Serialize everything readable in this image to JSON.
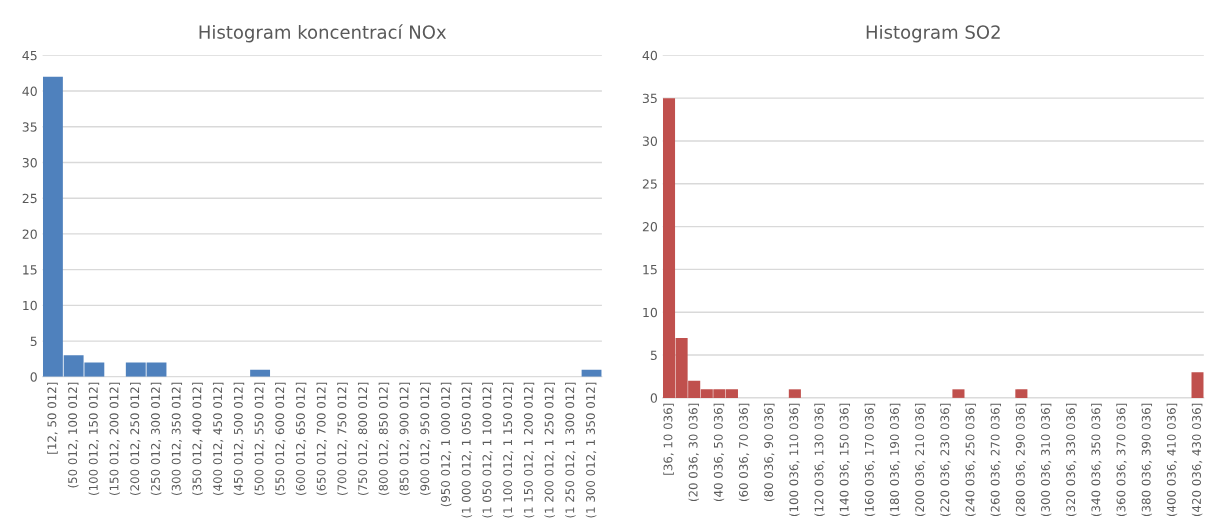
{
  "chart_data": [
    {
      "type": "bar",
      "title": "Histogram koncentrací NOx",
      "categories": [
        "[12, 50 012]",
        "(50 012, 100 012]",
        "(100 012, 150 012]",
        "(150 012, 200 012]",
        "(200 012, 250 012]",
        "(250 012, 300 012]",
        "(300 012, 350 012]",
        "(350 012, 400 012]",
        "(400 012, 450 012]",
        "(450 012, 500 012]",
        "(500 012, 550 012]",
        "(550 012, 600 012]",
        "(600 012, 650 012]",
        "(650 012, 700 012]",
        "(700 012, 750 012]",
        "(750 012, 800 012]",
        "(800 012, 850 012]",
        "(850 012, 900 012]",
        "(900 012, 950 012]",
        "(950 012, 1 000 012]",
        "(1 000 012, 1 050 012]",
        "(1 050 012, 1 100 012]",
        "(1 100 012, 1 150 012]",
        "(1 150 012, 1 200 012]",
        "(1 200 012, 1 250 012]",
        "(1 250 012, 1 300 012]",
        "(1 300 012, 1 350 012]"
      ],
      "values": [
        42,
        3,
        2,
        0,
        2,
        2,
        0,
        0,
        0,
        0,
        1,
        0,
        0,
        0,
        0,
        0,
        0,
        0,
        0,
        0,
        0,
        0,
        0,
        0,
        0,
        0,
        1
      ],
      "color": "#4f81bd",
      "ylim": [
        0,
        45
      ],
      "yticks": [
        0,
        5,
        10,
        15,
        20,
        25,
        30,
        35,
        40,
        45
      ],
      "grid": "y"
    },
    {
      "type": "bar",
      "title": "Histogram SO2",
      "categories": [
        "[36, 10 036]",
        null,
        "(20 036, 30 036]",
        null,
        "(40 036, 50 036]",
        null,
        "(60 036, 70 036]",
        null,
        "(80 036, 90 036]",
        null,
        "(100 036, 110 036]",
        null,
        "(120 036, 130 036]",
        null,
        "(140 036, 150 036]",
        null,
        "(160 036, 170 036]",
        null,
        "(180 036, 190 036]",
        null,
        "(200 036, 210 036]",
        null,
        "(220 036, 230 036]",
        null,
        "(240 036, 250 036]",
        null,
        "(260 036, 270 036]",
        null,
        "(280 036, 290 036]",
        null,
        "(300 036, 310 036]",
        null,
        "(320 036, 330 036]",
        null,
        "(340 036, 350 036]",
        null,
        "(360 036, 370 036]",
        null,
        "(380 036, 390 036]",
        null,
        "(400 036, 410 036]",
        null,
        "(420 036, 430 036]"
      ],
      "values": [
        35,
        7,
        2,
        1,
        1,
        1,
        0,
        0,
        0,
        0,
        1,
        0,
        0,
        0,
        0,
        0,
        0,
        0,
        0,
        0,
        0,
        0,
        0,
        1,
        0,
        0,
        0,
        0,
        1,
        0,
        0,
        0,
        0,
        0,
        0,
        0,
        0,
        0,
        0,
        0,
        0,
        0,
        3
      ],
      "color": "#c0504d",
      "ylim": [
        0,
        40
      ],
      "yticks": [
        0,
        5,
        10,
        15,
        20,
        25,
        30,
        35,
        40
      ],
      "grid": "y"
    }
  ]
}
